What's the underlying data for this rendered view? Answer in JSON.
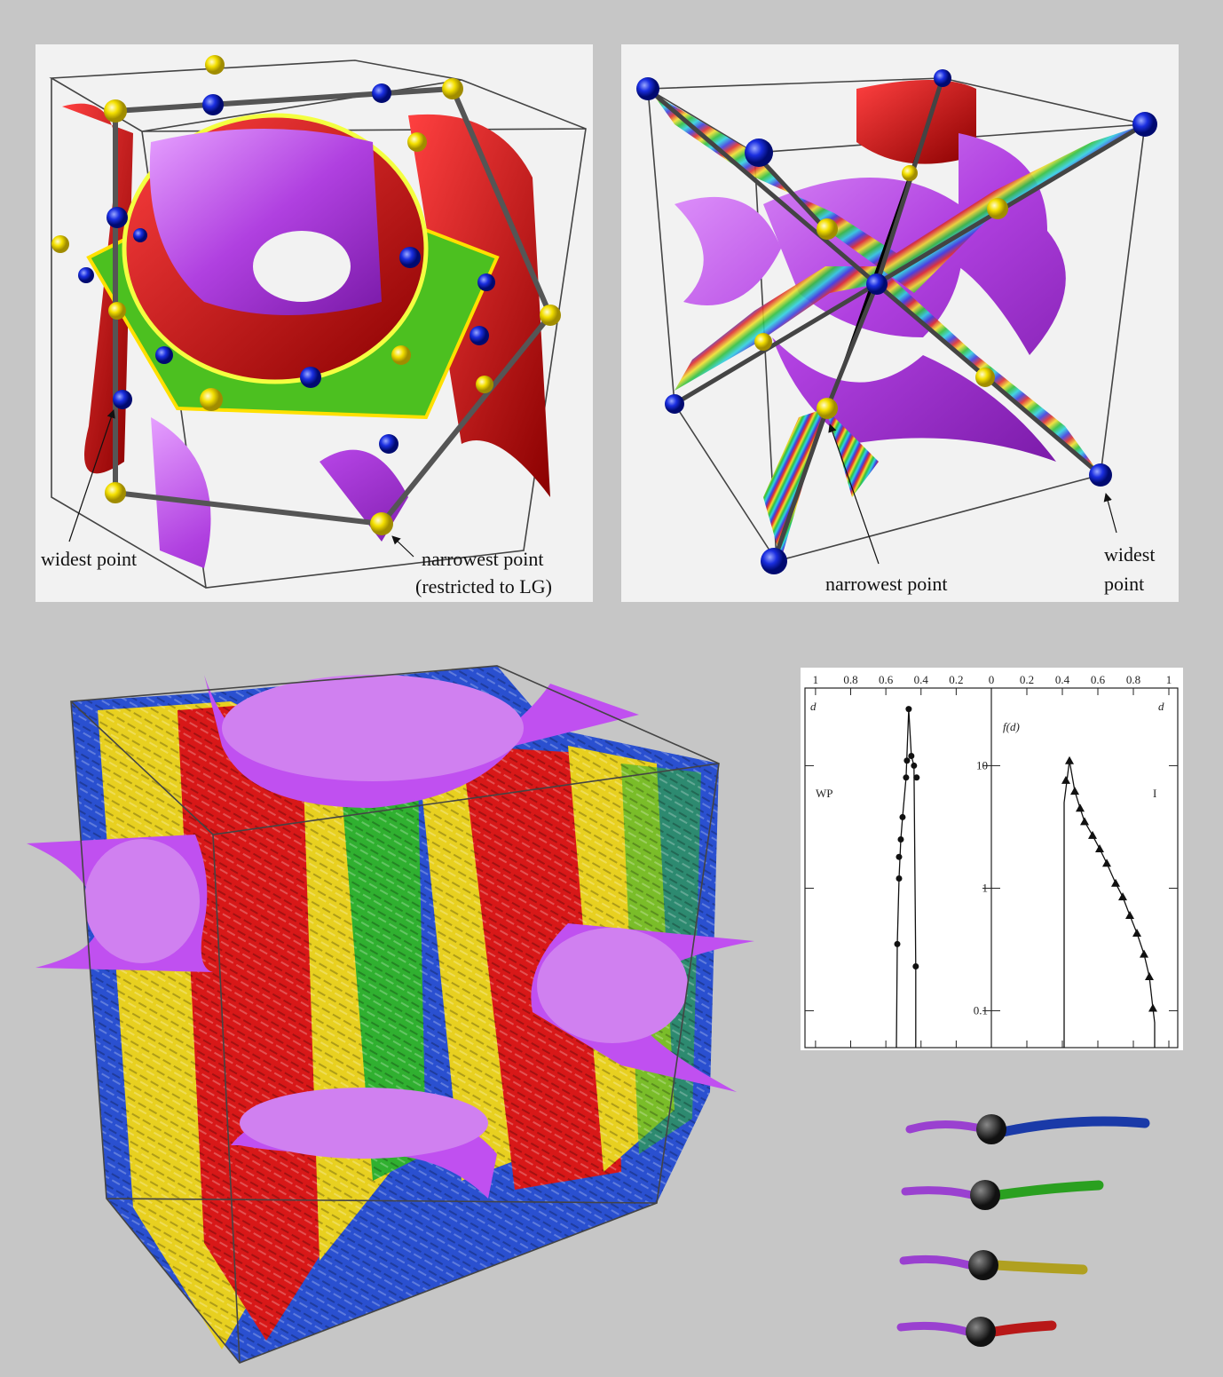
{
  "panels": {
    "top_left": {
      "labels": [
        "widest point",
        "narrowest point",
        "(restricted to LG)"
      ]
    },
    "top_right": {
      "labels": [
        "narrowest point",
        "widest",
        "point"
      ]
    }
  },
  "plot": {
    "y_log": true,
    "ylim": [
      0.05,
      43
    ],
    "yticks": [
      0.1,
      1,
      10
    ],
    "y_label": "f(d)",
    "panels": [
      {
        "label": "WP",
        "x_label": "d",
        "marker": "circle",
        "xlim": [
          1.06,
          0
        ],
        "xticks": [
          1,
          0.8,
          0.6,
          0.4,
          0.2
        ],
        "curve": {
          "x": [
            0.54,
            0.535,
            0.525,
            0.515,
            0.505,
            0.485,
            0.47,
            0.455,
            0.44,
            0.43,
            0.43
          ],
          "y": [
            0.05,
            0.35,
            1.2,
            2.5,
            3.8,
            8,
            29,
            12,
            10,
            0.23,
            0.05
          ]
        },
        "points": {
          "x": [
            0.47,
            0.455,
            0.44,
            0.48,
            0.425,
            0.485,
            0.505,
            0.515,
            0.525,
            0.525,
            0.535,
            0.43
          ],
          "y": [
            29,
            12,
            10,
            11,
            8,
            8,
            3.8,
            2.5,
            1.8,
            1.2,
            0.35,
            0.23
          ]
        }
      },
      {
        "label": "I",
        "x_label": "d",
        "marker": "triangle",
        "xlim": [
          0,
          1.05
        ],
        "xticks": [
          0,
          0.2,
          0.4,
          0.6,
          0.8,
          1
        ],
        "curve": {
          "x": [
            0.41,
            0.41,
            0.44,
            0.47,
            0.5,
            0.525,
            0.57,
            0.61,
            0.65,
            0.7,
            0.74,
            0.78,
            0.82,
            0.86,
            0.89,
            0.91,
            0.92,
            0.92
          ],
          "y": [
            0.05,
            5,
            11,
            6.2,
            4.5,
            3.5,
            2.7,
            2.1,
            1.6,
            1.1,
            0.85,
            0.6,
            0.43,
            0.29,
            0.19,
            0.105,
            0.08,
            0.05
          ]
        },
        "points": {
          "x": [
            0.44,
            0.42,
            0.47,
            0.5,
            0.525,
            0.57,
            0.61,
            0.65,
            0.7,
            0.74,
            0.78,
            0.82,
            0.86,
            0.89,
            0.91
          ],
          "y": [
            11,
            7.6,
            6.2,
            4.5,
            3.5,
            2.7,
            2.1,
            1.6,
            1.1,
            0.85,
            0.6,
            0.43,
            0.29,
            0.19,
            0.105
          ]
        }
      }
    ]
  }
}
